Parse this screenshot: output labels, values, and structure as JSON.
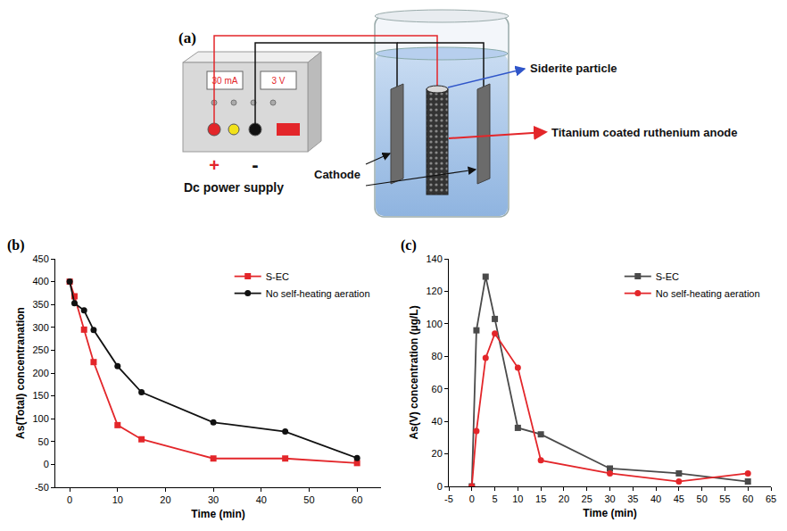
{
  "diagram": {
    "panel": "(a)",
    "power_supply": {
      "current": "30 mA",
      "voltage": "3 V",
      "positive": "+",
      "negative": "-",
      "label": "Dc power supply"
    },
    "labels": {
      "particle": "Siderite particle",
      "anode": "Titanium coated ruthenium anode",
      "cathode": "Cathode"
    }
  },
  "chart_data": [
    {
      "panel": "(b)",
      "type": "line",
      "x_label": "Time (min)",
      "y_label": "As(Total) concentranation",
      "x": [
        0,
        1,
        3,
        5,
        10,
        15,
        30,
        45,
        60
      ],
      "series": [
        {
          "name": "S-EC",
          "color": "#e3262a",
          "marker": "square",
          "line_style": "solid",
          "values": [
            400,
            368,
            295,
            224,
            86,
            55,
            13,
            13,
            3
          ]
        },
        {
          "name": "No self-heating aeration",
          "color": "#111111",
          "marker": "circle",
          "line_style": "solid",
          "values": [
            400,
            353,
            337,
            294,
            215,
            158,
            92,
            72,
            14
          ]
        }
      ],
      "xlim": [
        -3,
        65
      ],
      "xticks": [
        0,
        10,
        20,
        30,
        40,
        50,
        60
      ],
      "ylim": [
        -50,
        450
      ],
      "yticks": [
        -50,
        0,
        50,
        100,
        150,
        200,
        250,
        300,
        350,
        400,
        450
      ],
      "grid": false,
      "legend": "upper right"
    },
    {
      "panel": "(c)",
      "type": "line",
      "x_label": "Time (min)",
      "y_label": "As(V) concentration (µg/L)",
      "x": [
        0,
        1,
        3,
        5,
        10,
        15,
        30,
        45,
        60
      ],
      "series": [
        {
          "name": "S-EC",
          "color": "#4a4a4a",
          "marker": "square",
          "line_style": "solid",
          "values": [
            0,
            96,
            129,
            103,
            36,
            32,
            11,
            8,
            3
          ]
        },
        {
          "name": "No self-heating aeration",
          "color": "#e3262a",
          "marker": "circle",
          "line_style": "solid",
          "values": [
            0,
            34,
            79,
            94,
            73,
            16,
            8,
            3,
            8
          ]
        }
      ],
      "xlim": [
        -5,
        65
      ],
      "xticks": [
        -5,
        0,
        5,
        10,
        15,
        20,
        25,
        30,
        35,
        40,
        45,
        50,
        55,
        60,
        65
      ],
      "ylim": [
        0,
        140
      ],
      "yticks": [
        0,
        20,
        40,
        60,
        80,
        100,
        120,
        140
      ],
      "grid": false,
      "legend": "upper right"
    }
  ]
}
